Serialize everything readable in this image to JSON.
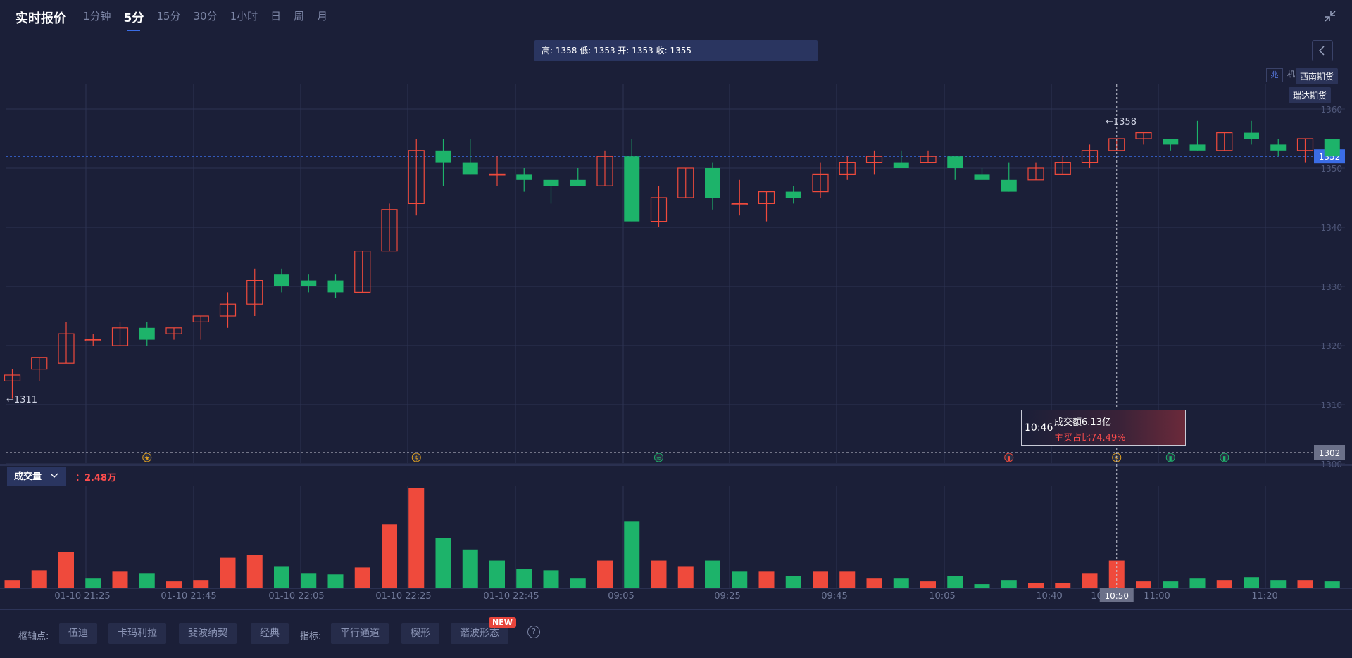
{
  "header": {
    "title": "实时报价",
    "tabs": [
      "1分钟",
      "5分",
      "15分",
      "30分",
      "1小时",
      "日",
      "周",
      "月"
    ],
    "active_tab": 1
  },
  "ohlc_text": "高: 1358 低: 1353 开: 1353 收: 1355",
  "brokers": [
    "西南期货",
    "瑞达期货"
  ],
  "mini_tag": "兆",
  "mini_tag2": "机",
  "tooltip": {
    "time": "10:46",
    "amount": "成交额6.13亿",
    "ratio": "主买占比74.49%"
  },
  "volume": {
    "label": "成交量",
    "value": "：2.48万"
  },
  "bottom": {
    "pivot_label": "枢轴点:",
    "pivot_buttons": [
      "伍迪",
      "卡玛利拉",
      "斐波纳契",
      "经典"
    ],
    "indicator_label": "指标:",
    "indicator_buttons": [
      "平行通道",
      "楔形",
      "谐波形态"
    ],
    "new_badge": "NEW",
    "help": "?"
  },
  "chart_data": {
    "type": "candlestick",
    "price_axis": {
      "ticks": [
        1360,
        1350,
        1340,
        1330,
        1320,
        1310,
        1300
      ]
    },
    "current_price": "1352",
    "ref_level": "1302",
    "max_marker": "←1358",
    "min_marker": "←1311",
    "x_labels": [
      "01-10 21:25",
      "01-10 21:45",
      "01-10 22:05",
      "01-10 22:25",
      "01-10 22:45",
      "09:05",
      "09:25",
      "09:45",
      "10:05",
      "10:40",
      "10:50",
      "11:00",
      "11:20"
    ],
    "crosshair_label": "10:50",
    "candles": [
      {
        "o": 1314,
        "h": 1316,
        "l": 1311,
        "c": 1315
      },
      {
        "o": 1316,
        "h": 1318,
        "l": 1314,
        "c": 1318
      },
      {
        "o": 1317,
        "h": 1324,
        "l": 1317,
        "c": 1322
      },
      {
        "o": 1321,
        "h": 1322,
        "l": 1320,
        "c": 1321
      },
      {
        "o": 1320,
        "h": 1324,
        "l": 1320,
        "c": 1323
      },
      {
        "o": 1323,
        "h": 1324,
        "l": 1320,
        "c": 1321
      },
      {
        "o": 1322,
        "h": 1323,
        "l": 1321,
        "c": 1323
      },
      {
        "o": 1324,
        "h": 1325,
        "l": 1321,
        "c": 1325
      },
      {
        "o": 1325,
        "h": 1329,
        "l": 1323,
        "c": 1327
      },
      {
        "o": 1327,
        "h": 1333,
        "l": 1325,
        "c": 1331
      },
      {
        "o": 1332,
        "h": 1333,
        "l": 1329,
        "c": 1330
      },
      {
        "o": 1331,
        "h": 1332,
        "l": 1329,
        "c": 1330
      },
      {
        "o": 1331,
        "h": 1332,
        "l": 1328,
        "c": 1329
      },
      {
        "o": 1329,
        "h": 1336,
        "l": 1329,
        "c": 1336
      },
      {
        "o": 1336,
        "h": 1344,
        "l": 1336,
        "c": 1343
      },
      {
        "o": 1344,
        "h": 1355,
        "l": 1342,
        "c": 1353
      },
      {
        "o": 1353,
        "h": 1355,
        "l": 1347,
        "c": 1351
      },
      {
        "o": 1351,
        "h": 1355,
        "l": 1349,
        "c": 1349
      },
      {
        "o": 1349,
        "h": 1352,
        "l": 1347,
        "c": 1349
      },
      {
        "o": 1349,
        "h": 1350,
        "l": 1346,
        "c": 1348
      },
      {
        "o": 1348,
        "h": 1348,
        "l": 1344,
        "c": 1347
      },
      {
        "o": 1348,
        "h": 1350,
        "l": 1347,
        "c": 1347
      },
      {
        "o": 1347,
        "h": 1353,
        "l": 1347,
        "c": 1352
      },
      {
        "o": 1352,
        "h": 1355,
        "l": 1341,
        "c": 1341
      },
      {
        "o": 1341,
        "h": 1347,
        "l": 1340,
        "c": 1345
      },
      {
        "o": 1345,
        "h": 1350,
        "l": 1345,
        "c": 1350
      },
      {
        "o": 1350,
        "h": 1351,
        "l": 1343,
        "c": 1345
      },
      {
        "o": 1344,
        "h": 1348,
        "l": 1342,
        "c": 1344
      },
      {
        "o": 1344,
        "h": 1346,
        "l": 1341,
        "c": 1346
      },
      {
        "o": 1346,
        "h": 1347,
        "l": 1344,
        "c": 1345
      },
      {
        "o": 1346,
        "h": 1351,
        "l": 1345,
        "c": 1349
      },
      {
        "o": 1349,
        "h": 1352,
        "l": 1348,
        "c": 1351
      },
      {
        "o": 1351,
        "h": 1353,
        "l": 1349,
        "c": 1352
      },
      {
        "o": 1351,
        "h": 1353,
        "l": 1350,
        "c": 1350
      },
      {
        "o": 1351,
        "h": 1353,
        "l": 1351,
        "c": 1352
      },
      {
        "o": 1352,
        "h": 1352,
        "l": 1348,
        "c": 1350
      },
      {
        "o": 1349,
        "h": 1350,
        "l": 1348,
        "c": 1348
      },
      {
        "o": 1348,
        "h": 1351,
        "l": 1346,
        "c": 1346
      },
      {
        "o": 1348,
        "h": 1351,
        "l": 1348,
        "c": 1350
      },
      {
        "o": 1349,
        "h": 1352,
        "l": 1349,
        "c": 1351
      },
      {
        "o": 1351,
        "h": 1354,
        "l": 1350,
        "c": 1353
      },
      {
        "o": 1353,
        "h": 1355,
        "l": 1353,
        "c": 1355
      },
      {
        "o": 1355,
        "h": 1356,
        "l": 1354,
        "c": 1356
      },
      {
        "o": 1355,
        "h": 1355,
        "l": 1353,
        "c": 1354
      },
      {
        "o": 1354,
        "h": 1358,
        "l": 1353,
        "c": 1353
      },
      {
        "o": 1353,
        "h": 1356,
        "l": 1353,
        "c": 1356
      },
      {
        "o": 1356,
        "h": 1358,
        "l": 1354,
        "c": 1355
      },
      {
        "o": 1354,
        "h": 1355,
        "l": 1352,
        "c": 1353
      },
      {
        "o": 1353,
        "h": 1355,
        "l": 1351,
        "c": 1355
      },
      {
        "o": 1355,
        "h": 1355,
        "l": 1352,
        "c": 1352
      }
    ],
    "volume_bars": [
      {
        "v": 0.3,
        "up": true
      },
      {
        "v": 0.65,
        "up": true
      },
      {
        "v": 1.3,
        "up": true
      },
      {
        "v": 0.35,
        "up": false
      },
      {
        "v": 0.6,
        "up": true
      },
      {
        "v": 0.55,
        "up": false
      },
      {
        "v": 0.25,
        "up": true
      },
      {
        "v": 0.3,
        "up": true
      },
      {
        "v": 1.1,
        "up": true
      },
      {
        "v": 1.2,
        "up": true
      },
      {
        "v": 0.8,
        "up": false
      },
      {
        "v": 0.55,
        "up": false
      },
      {
        "v": 0.5,
        "up": false
      },
      {
        "v": 0.75,
        "up": true
      },
      {
        "v": 2.3,
        "up": true
      },
      {
        "v": 3.6,
        "up": true
      },
      {
        "v": 1.8,
        "up": false
      },
      {
        "v": 1.4,
        "up": false
      },
      {
        "v": 1.0,
        "up": false
      },
      {
        "v": 0.7,
        "up": false
      },
      {
        "v": 0.65,
        "up": false
      },
      {
        "v": 0.35,
        "up": false
      },
      {
        "v": 1.0,
        "up": true
      },
      {
        "v": 2.4,
        "up": false
      },
      {
        "v": 1.0,
        "up": true
      },
      {
        "v": 0.8,
        "up": true
      },
      {
        "v": 1.0,
        "up": false
      },
      {
        "v": 0.6,
        "up": false
      },
      {
        "v": 0.6,
        "up": true
      },
      {
        "v": 0.45,
        "up": false
      },
      {
        "v": 0.6,
        "up": true
      },
      {
        "v": 0.6,
        "up": true
      },
      {
        "v": 0.35,
        "up": true
      },
      {
        "v": 0.35,
        "up": false
      },
      {
        "v": 0.25,
        "up": true
      },
      {
        "v": 0.45,
        "up": false
      },
      {
        "v": 0.15,
        "up": false
      },
      {
        "v": 0.3,
        "up": false
      },
      {
        "v": 0.2,
        "up": true
      },
      {
        "v": 0.2,
        "up": true
      },
      {
        "v": 0.55,
        "up": true
      },
      {
        "v": 1.0,
        "up": true
      },
      {
        "v": 0.25,
        "up": true
      },
      {
        "v": 0.25,
        "up": false
      },
      {
        "v": 0.35,
        "up": false
      },
      {
        "v": 0.3,
        "up": true
      },
      {
        "v": 0.4,
        "up": false
      },
      {
        "v": 0.3,
        "up": false
      },
      {
        "v": 0.3,
        "up": true
      },
      {
        "v": 0.25,
        "up": false
      }
    ],
    "event_markers": [
      {
        "idx": 5,
        "icon": "★",
        "color": "#e0a020"
      },
      {
        "idx": 15,
        "icon": "$",
        "color": "#e0a020"
      },
      {
        "idx": 24,
        "icon": "≈",
        "color": "#1db36a"
      },
      {
        "idx": 37,
        "icon": "▮",
        "color": "#ef4a3c"
      },
      {
        "idx": 41,
        "icon": "$",
        "color": "#e0a020"
      },
      {
        "idx": 43,
        "icon": "▮",
        "color": "#1db36a"
      },
      {
        "idx": 45,
        "icon": "▮",
        "color": "#1db36a"
      }
    ],
    "colors": {
      "up": "#ef4a3c",
      "down": "#1db36a",
      "price_tag": "#3b6de6"
    }
  }
}
